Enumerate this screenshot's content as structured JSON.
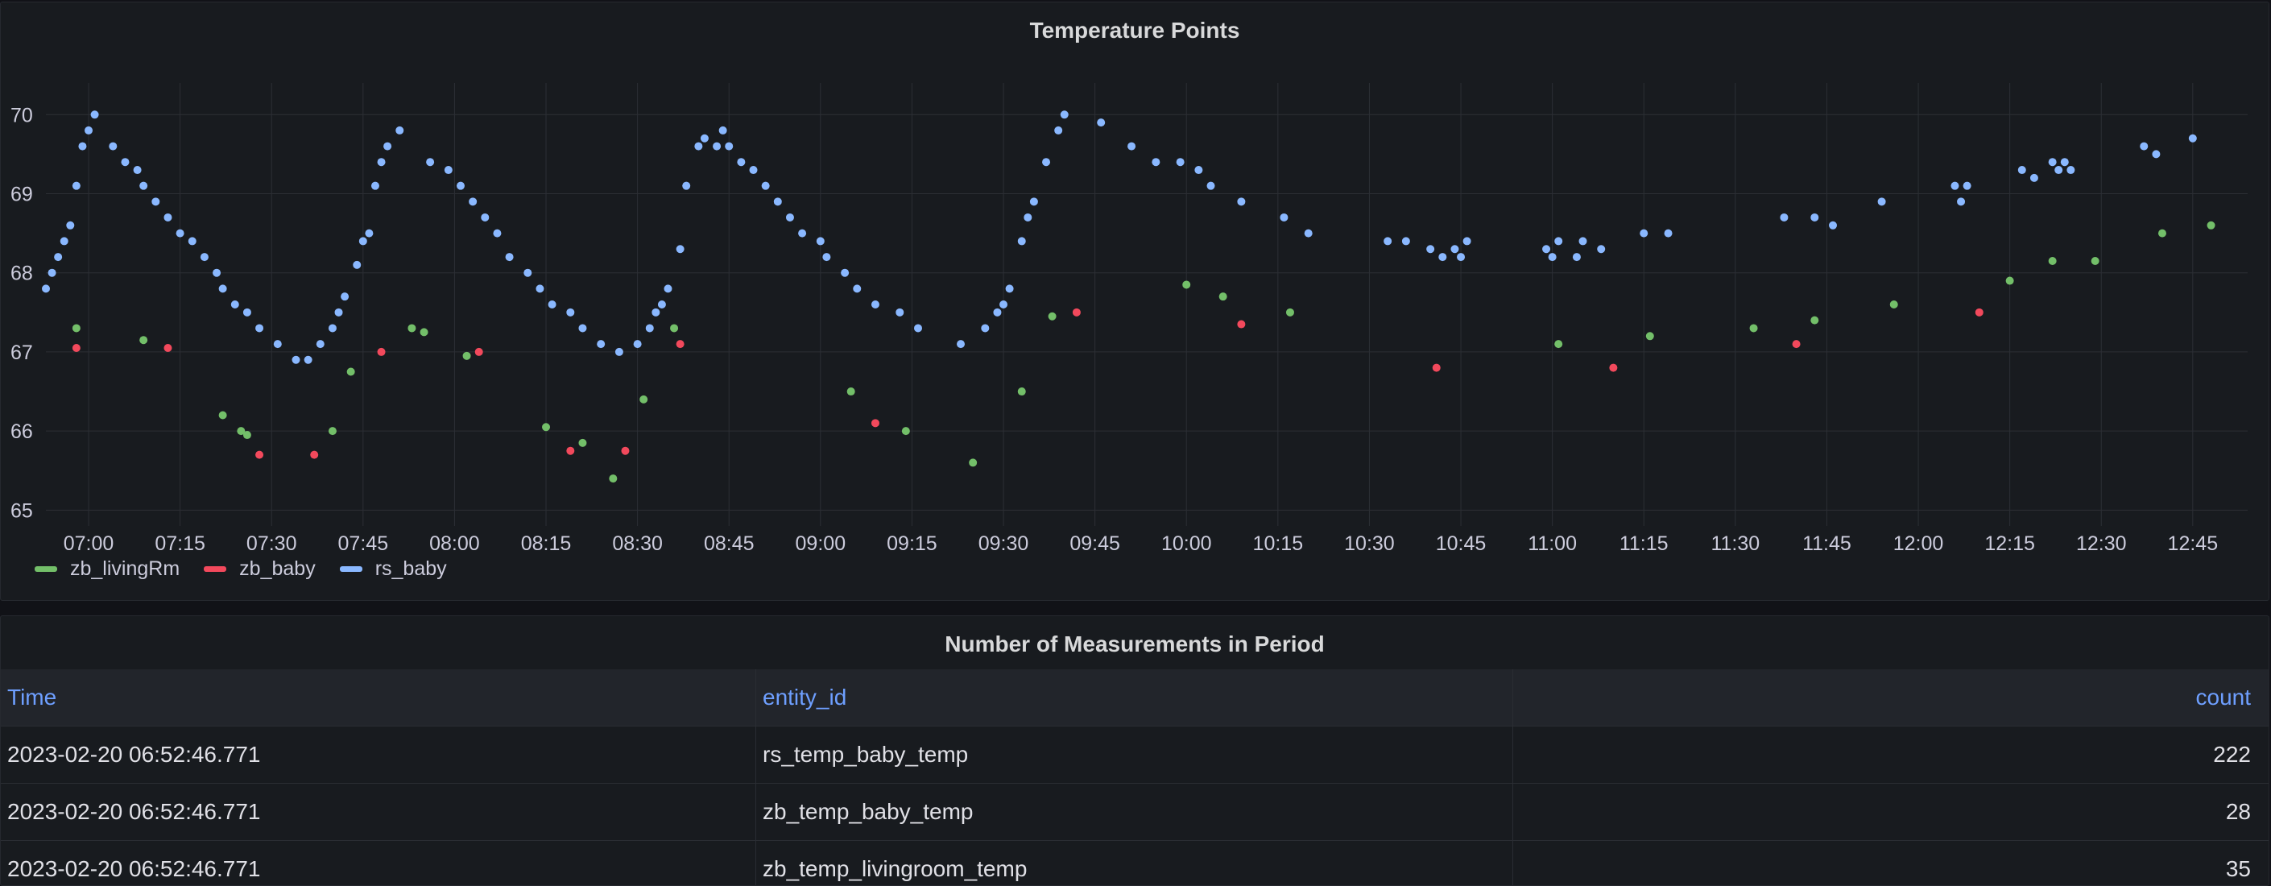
{
  "chart_panel": {
    "title": "Temperature Points"
  },
  "table_panel": {
    "title": "Number of Measurements in Period",
    "columns": [
      "Time",
      "entity_id",
      "count"
    ],
    "rows": [
      [
        "2023-02-20 06:52:46.771",
        "rs_temp_baby_temp",
        "222"
      ],
      [
        "2023-02-20 06:52:46.771",
        "zb_temp_baby_temp",
        "28"
      ],
      [
        "2023-02-20 06:52:46.771",
        "zb_temp_livingroom_temp",
        "35"
      ]
    ]
  },
  "colors": {
    "zb_livingRm": "#73bf69",
    "zb_baby": "#f2495c",
    "rs_baby": "#8ab8ff",
    "grid": "#2c2f35",
    "text": "#ccccdc"
  },
  "chart_data": {
    "type": "scatter",
    "title": "Temperature Points",
    "xlabel": "",
    "ylabel": "",
    "xlim": [
      "06:53",
      "12:54"
    ],
    "ylim": [
      64.8,
      70.4
    ],
    "x_ticks": [
      "07:00",
      "07:15",
      "07:30",
      "07:45",
      "08:00",
      "08:15",
      "08:30",
      "08:45",
      "09:00",
      "09:15",
      "09:30",
      "09:45",
      "10:00",
      "10:15",
      "10:30",
      "10:45",
      "11:00",
      "11:15",
      "11:30",
      "11:45",
      "12:00",
      "12:15",
      "12:30",
      "12:45"
    ],
    "y_ticks": [
      65,
      66,
      67,
      68,
      69,
      70
    ],
    "grid": true,
    "legend": "bottom-left",
    "series": [
      {
        "name": "zb_livingRm",
        "points": [
          [
            "06:58",
            67.3
          ],
          [
            "07:09",
            67.15
          ],
          [
            "07:22",
            66.2
          ],
          [
            "07:25",
            66.0
          ],
          [
            "07:26",
            65.95
          ],
          [
            "07:40",
            66.0
          ],
          [
            "07:43",
            66.75
          ],
          [
            "07:53",
            67.3
          ],
          [
            "07:55",
            67.25
          ],
          [
            "08:02",
            66.95
          ],
          [
            "08:15",
            66.05
          ],
          [
            "08:21",
            65.85
          ],
          [
            "08:26",
            65.4
          ],
          [
            "08:31",
            66.4
          ],
          [
            "08:36",
            67.3
          ],
          [
            "09:05",
            66.5
          ],
          [
            "09:14",
            66.0
          ],
          [
            "09:25",
            65.6
          ],
          [
            "09:33",
            66.5
          ],
          [
            "09:38",
            67.45
          ],
          [
            "10:00",
            67.85
          ],
          [
            "10:06",
            67.7
          ],
          [
            "10:17",
            67.5
          ],
          [
            "11:01",
            67.1
          ],
          [
            "11:16",
            67.2
          ],
          [
            "11:33",
            67.3
          ],
          [
            "11:43",
            67.4
          ],
          [
            "11:56",
            67.6
          ],
          [
            "12:15",
            67.9
          ],
          [
            "12:22",
            68.15
          ],
          [
            "12:29",
            68.15
          ],
          [
            "12:40",
            68.5
          ],
          [
            "12:48",
            68.6
          ]
        ]
      },
      {
        "name": "zb_baby",
        "points": [
          [
            "06:58",
            67.05
          ],
          [
            "07:13",
            67.05
          ],
          [
            "07:28",
            65.7
          ],
          [
            "07:37",
            65.7
          ],
          [
            "07:48",
            67.0
          ],
          [
            "08:04",
            67.0
          ],
          [
            "08:19",
            65.75
          ],
          [
            "08:28",
            65.75
          ],
          [
            "08:37",
            67.1
          ],
          [
            "09:09",
            66.1
          ],
          [
            "09:42",
            67.5
          ],
          [
            "10:09",
            67.35
          ],
          [
            "10:41",
            66.8
          ],
          [
            "11:10",
            66.8
          ],
          [
            "11:40",
            67.1
          ],
          [
            "12:10",
            67.5
          ]
        ]
      },
      {
        "name": "rs_baby",
        "points": [
          [
            "06:53",
            67.8
          ],
          [
            "06:54",
            68.0
          ],
          [
            "06:55",
            68.2
          ],
          [
            "06:56",
            68.4
          ],
          [
            "06:57",
            68.6
          ],
          [
            "06:58",
            69.1
          ],
          [
            "06:59",
            69.6
          ],
          [
            "07:00",
            69.8
          ],
          [
            "07:01",
            70.0
          ],
          [
            "07:04",
            69.6
          ],
          [
            "07:06",
            69.4
          ],
          [
            "07:08",
            69.3
          ],
          [
            "07:09",
            69.1
          ],
          [
            "07:11",
            68.9
          ],
          [
            "07:13",
            68.7
          ],
          [
            "07:15",
            68.5
          ],
          [
            "07:17",
            68.4
          ],
          [
            "07:19",
            68.2
          ],
          [
            "07:21",
            68.0
          ],
          [
            "07:22",
            67.8
          ],
          [
            "07:24",
            67.6
          ],
          [
            "07:26",
            67.5
          ],
          [
            "07:28",
            67.3
          ],
          [
            "07:31",
            67.1
          ],
          [
            "07:34",
            66.9
          ],
          [
            "07:36",
            66.9
          ],
          [
            "07:38",
            67.1
          ],
          [
            "07:40",
            67.3
          ],
          [
            "07:41",
            67.5
          ],
          [
            "07:42",
            67.7
          ],
          [
            "07:44",
            68.1
          ],
          [
            "07:45",
            68.4
          ],
          [
            "07:46",
            68.5
          ],
          [
            "07:47",
            69.1
          ],
          [
            "07:48",
            69.4
          ],
          [
            "07:49",
            69.6
          ],
          [
            "07:51",
            69.8
          ],
          [
            "07:56",
            69.4
          ],
          [
            "07:59",
            69.3
          ],
          [
            "08:01",
            69.1
          ],
          [
            "08:03",
            68.9
          ],
          [
            "08:05",
            68.7
          ],
          [
            "08:07",
            68.5
          ],
          [
            "08:09",
            68.2
          ],
          [
            "08:12",
            68.0
          ],
          [
            "08:14",
            67.8
          ],
          [
            "08:16",
            67.6
          ],
          [
            "08:19",
            67.5
          ],
          [
            "08:21",
            67.3
          ],
          [
            "08:24",
            67.1
          ],
          [
            "08:27",
            67.0
          ],
          [
            "08:30",
            67.1
          ],
          [
            "08:32",
            67.3
          ],
          [
            "08:33",
            67.5
          ],
          [
            "08:34",
            67.6
          ],
          [
            "08:35",
            67.8
          ],
          [
            "08:37",
            68.3
          ],
          [
            "08:38",
            69.1
          ],
          [
            "08:40",
            69.6
          ],
          [
            "08:41",
            69.7
          ],
          [
            "08:43",
            69.6
          ],
          [
            "08:44",
            69.8
          ],
          [
            "08:45",
            69.6
          ],
          [
            "08:47",
            69.4
          ],
          [
            "08:49",
            69.3
          ],
          [
            "08:51",
            69.1
          ],
          [
            "08:53",
            68.9
          ],
          [
            "08:55",
            68.7
          ],
          [
            "08:57",
            68.5
          ],
          [
            "09:00",
            68.4
          ],
          [
            "09:01",
            68.2
          ],
          [
            "09:04",
            68.0
          ],
          [
            "09:06",
            67.8
          ],
          [
            "09:09",
            67.6
          ],
          [
            "09:13",
            67.5
          ],
          [
            "09:16",
            67.3
          ],
          [
            "09:23",
            67.1
          ],
          [
            "09:27",
            67.3
          ],
          [
            "09:29",
            67.5
          ],
          [
            "09:30",
            67.6
          ],
          [
            "09:31",
            67.8
          ],
          [
            "09:33",
            68.4
          ],
          [
            "09:34",
            68.7
          ],
          [
            "09:35",
            68.9
          ],
          [
            "09:37",
            69.4
          ],
          [
            "09:39",
            69.8
          ],
          [
            "09:40",
            70.0
          ],
          [
            "09:46",
            69.9
          ],
          [
            "09:51",
            69.6
          ],
          [
            "09:55",
            69.4
          ],
          [
            "09:59",
            69.4
          ],
          [
            "10:02",
            69.3
          ],
          [
            "10:04",
            69.1
          ],
          [
            "10:09",
            68.9
          ],
          [
            "10:16",
            68.7
          ],
          [
            "10:20",
            68.5
          ],
          [
            "10:33",
            68.4
          ],
          [
            "10:36",
            68.4
          ],
          [
            "10:40",
            68.3
          ],
          [
            "10:42",
            68.2
          ],
          [
            "10:44",
            68.3
          ],
          [
            "10:45",
            68.2
          ],
          [
            "10:46",
            68.4
          ],
          [
            "10:59",
            68.3
          ],
          [
            "11:00",
            68.2
          ],
          [
            "11:01",
            68.4
          ],
          [
            "11:04",
            68.2
          ],
          [
            "11:05",
            68.4
          ],
          [
            "11:08",
            68.3
          ],
          [
            "11:15",
            68.5
          ],
          [
            "11:19",
            68.5
          ],
          [
            "11:38",
            68.7
          ],
          [
            "11:43",
            68.7
          ],
          [
            "11:46",
            68.6
          ],
          [
            "11:54",
            68.9
          ],
          [
            "12:06",
            69.1
          ],
          [
            "12:07",
            68.9
          ],
          [
            "12:08",
            69.1
          ],
          [
            "12:17",
            69.3
          ],
          [
            "12:19",
            69.2
          ],
          [
            "12:22",
            69.4
          ],
          [
            "12:23",
            69.3
          ],
          [
            "12:24",
            69.4
          ],
          [
            "12:25",
            69.3
          ],
          [
            "12:37",
            69.6
          ],
          [
            "12:39",
            69.5
          ],
          [
            "12:45",
            69.7
          ]
        ]
      }
    ]
  }
}
